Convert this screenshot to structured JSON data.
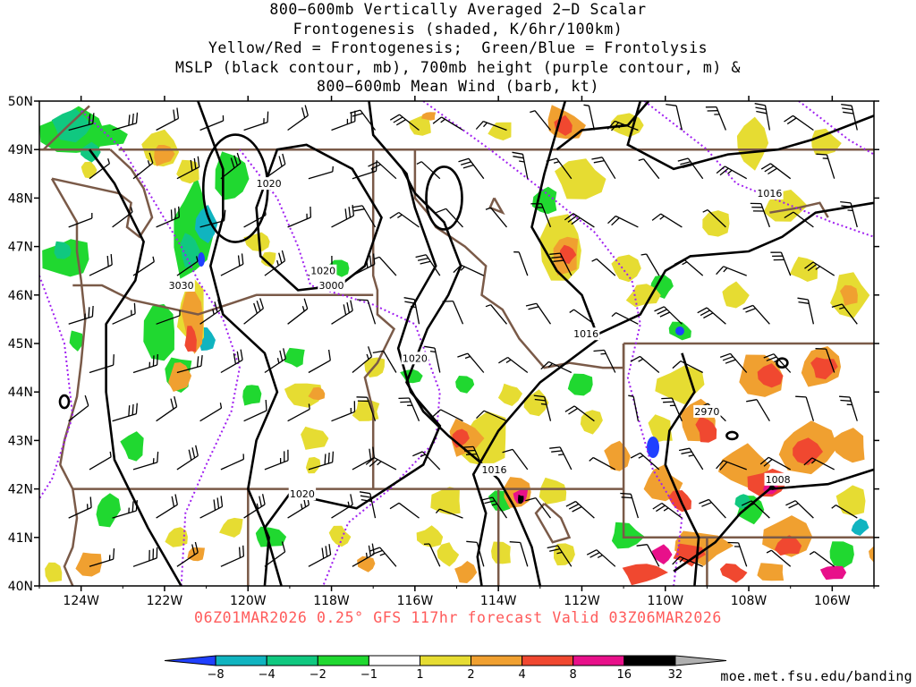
{
  "title": {
    "lines": [
      "800−600mb Vertically Averaged 2−D Scalar",
      "Frontogenesis (shaded, K/6hr/100km)",
      "Yellow/Red = Frontogenesis;  Green/Blue = Frontolysis",
      "MSLP (black contour, mb), 700mb height (purple contour, m) &",
      "800−600mb Mean Wind (barb, kt)"
    ]
  },
  "map": {
    "lat_labels": [
      "50N",
      "49N",
      "48N",
      "47N",
      "46N",
      "45N",
      "44N",
      "43N",
      "42N",
      "41N",
      "40N"
    ],
    "lon_labels": [
      "124W",
      "122W",
      "120W",
      "118W",
      "116W",
      "114W",
      "112W",
      "110W",
      "108W",
      "106W"
    ],
    "lat_range": [
      40,
      50
    ],
    "lon_range": [
      -125,
      -105
    ],
    "contour_labels": {
      "mslp": [
        {
          "text": "1020",
          "lon": -119.5,
          "lat": 48.3
        },
        {
          "text": "1020",
          "lon": -118.2,
          "lat": 46.5
        },
        {
          "text": "1020",
          "lon": -116.0,
          "lat": 44.7
        },
        {
          "text": "1020",
          "lon": -118.7,
          "lat": 41.9
        },
        {
          "text": "1016",
          "lon": -107.5,
          "lat": 48.1
        },
        {
          "text": "1016",
          "lon": -111.9,
          "lat": 45.2
        },
        {
          "text": "1016",
          "lon": -114.1,
          "lat": 42.4
        },
        {
          "text": "1008",
          "lon": -107.3,
          "lat": 42.2
        }
      ],
      "height": [
        {
          "text": "3030",
          "lon": -121.6,
          "lat": 46.2
        },
        {
          "text": "3000",
          "lon": -118.0,
          "lat": 46.2
        },
        {
          "text": "2970",
          "lon": -109.0,
          "lat": 43.6
        }
      ]
    },
    "colors": {
      "mslp": "#000000",
      "height": "#a020f0",
      "borders": "#7a5a48",
      "barbs": "#000000"
    }
  },
  "footer": {
    "text": "06Z01MAR2026 0.25° GFS 117hr forecast Valid 03Z06MAR2026",
    "color": "#ff5a5a"
  },
  "colorbar": {
    "labels": [
      "−8",
      "−4",
      "−2",
      "−1",
      "1",
      "2",
      "4",
      "8",
      "16",
      "32"
    ],
    "colors": [
      "#2040ff",
      "#10b4c0",
      "#10c880",
      "#20d830",
      "#ffffff",
      "#e6dc32",
      "#f0a030",
      "#f04830",
      "#e8108a",
      "#000000"
    ]
  },
  "credit": "moe.met.fsu.edu/banding"
}
